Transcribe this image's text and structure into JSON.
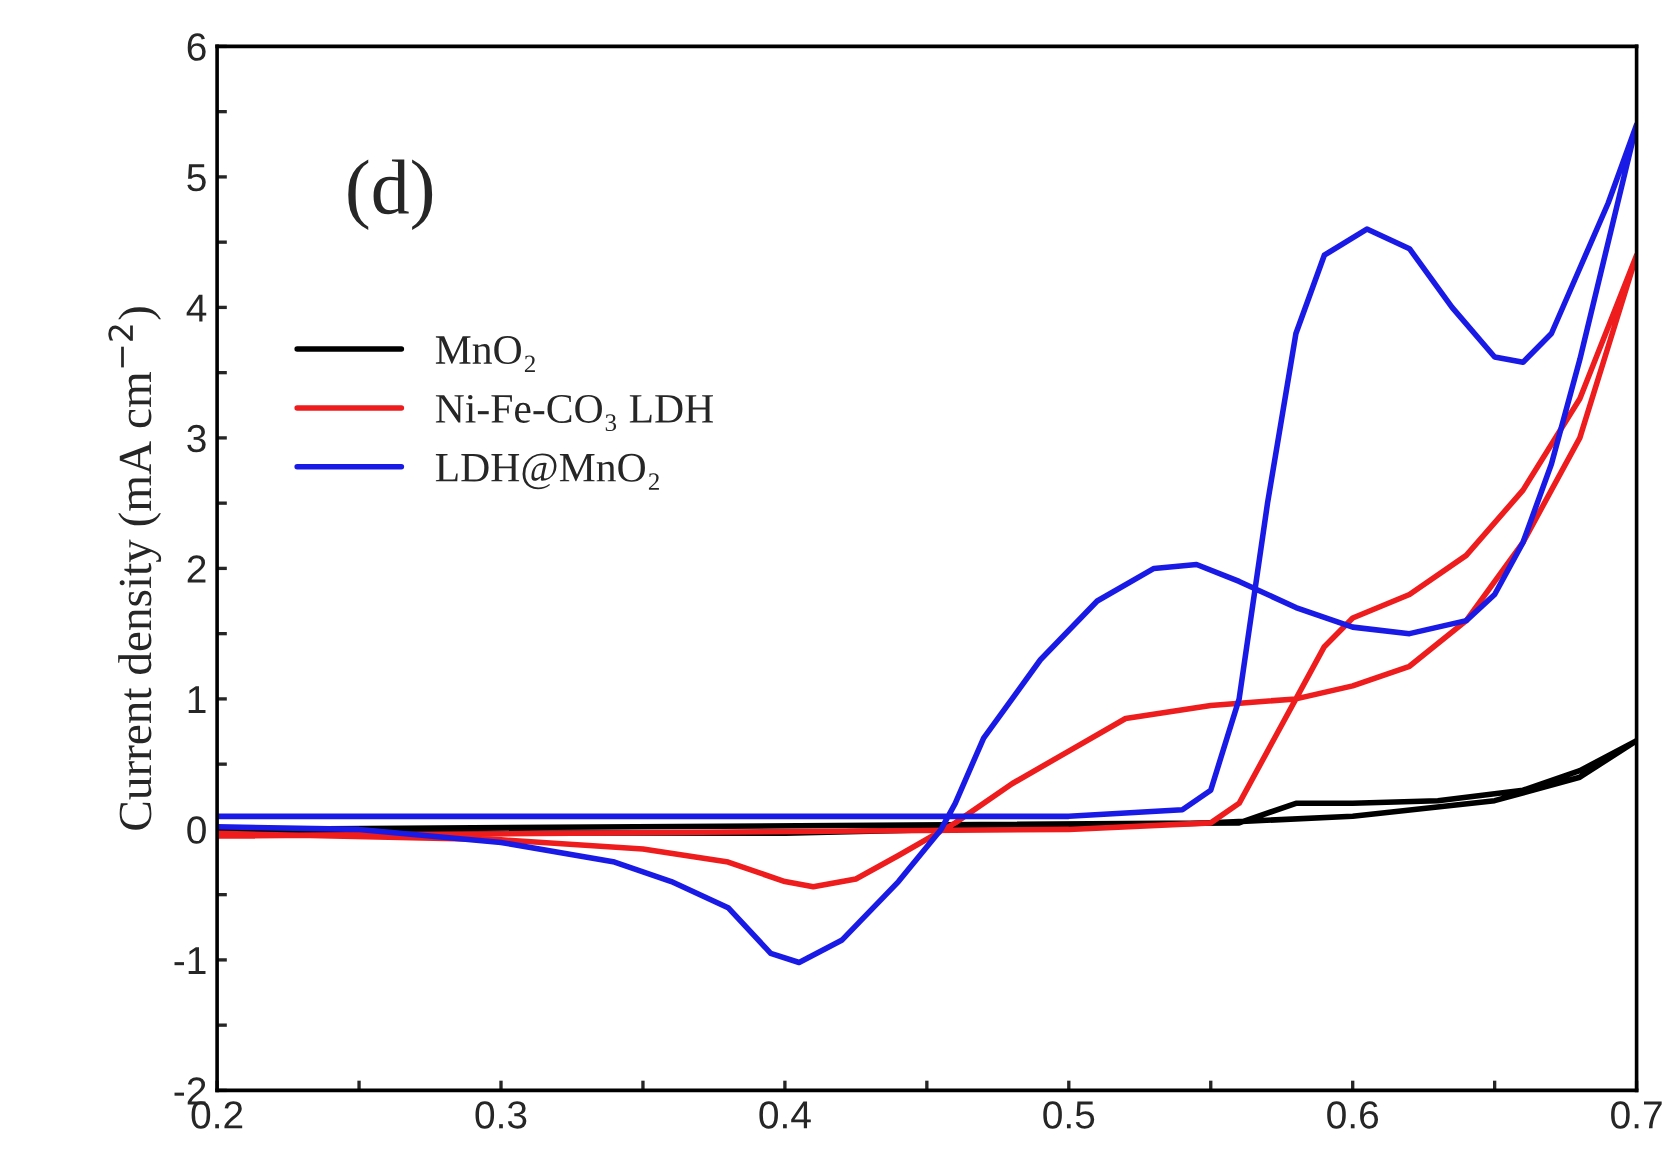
{
  "chart_data": {
    "type": "line",
    "ylabel": "Current density (mA cm$^{−2}$)",
    "annotations": [
      "(d)"
    ],
    "xlim": [
      0.2,
      0.7
    ],
    "ylim": [
      -2,
      6
    ],
    "xticks": [
      0.2,
      {
        "value": 0.25,
        "label": null
      },
      0.3,
      {
        "value": 0.35,
        "label": null
      },
      0.4,
      {
        "value": 0.45,
        "label": null
      },
      0.5,
      {
        "value": 0.55,
        "label": null
      },
      0.6,
      {
        "value": 0.65,
        "label": null
      },
      0.7
    ],
    "yticks": [
      -2,
      {
        "value": -1.5,
        "label": null
      },
      -1,
      {
        "value": -0.5,
        "label": null
      },
      0,
      {
        "value": 0.5,
        "label": null
      },
      1,
      {
        "value": 1.5,
        "label": null
      },
      2,
      {
        "value": 2.5,
        "label": null
      },
      3,
      {
        "value": 3.5,
        "label": null
      },
      4,
      {
        "value": 4.5,
        "label": null
      },
      5,
      {
        "value": 5.5,
        "label": null
      },
      6
    ],
    "legend": "top left",
    "grid": false,
    "marker": "none",
    "line_style": "solid",
    "series": [
      {
        "name": "MnO₂",
        "color": "#000000",
        "x": [
          0.2,
          0.56,
          0.58,
          0.6,
          0.63,
          0.66,
          0.68,
          0.7,
          0.68,
          0.65,
          0.6,
          0.55,
          0.4,
          0.2
        ],
        "values": [
          0.0,
          0.05,
          0.2,
          0.2,
          0.22,
          0.3,
          0.45,
          0.68,
          0.4,
          0.22,
          0.1,
          0.05,
          -0.03,
          -0.02
        ]
      },
      {
        "name": "Ni-Fe-CO₃ LDH",
        "color": "#ee1c1c",
        "x": [
          0.2,
          0.5,
          0.55,
          0.56,
          0.57,
          0.58,
          0.59,
          0.6,
          0.62,
          0.64,
          0.66,
          0.68,
          0.7,
          0.68,
          0.66,
          0.64,
          0.62,
          0.6,
          0.58,
          0.55,
          0.52,
          0.5,
          0.48,
          0.46,
          0.44,
          0.425,
          0.41,
          0.4,
          0.38,
          0.35,
          0.3,
          0.2
        ],
        "values": [
          -0.05,
          0.0,
          0.05,
          0.2,
          0.6,
          1.0,
          1.4,
          1.62,
          1.8,
          2.1,
          2.6,
          3.3,
          4.4,
          3.0,
          2.2,
          1.6,
          1.25,
          1.1,
          1.0,
          0.95,
          0.85,
          0.6,
          0.35,
          0.05,
          -0.2,
          -0.38,
          -0.44,
          -0.4,
          -0.25,
          -0.15,
          -0.08,
          -0.03
        ]
      },
      {
        "name": "LDH@MnO₂",
        "color": "#1a1ae6",
        "x": [
          0.2,
          0.5,
          0.54,
          0.55,
          0.56,
          0.57,
          0.58,
          0.59,
          0.605,
          0.62,
          0.635,
          0.65,
          0.66,
          0.67,
          0.68,
          0.69,
          0.7,
          0.69,
          0.68,
          0.67,
          0.66,
          0.65,
          0.64,
          0.62,
          0.6,
          0.58,
          0.56,
          0.545,
          0.53,
          0.51,
          0.49,
          0.47,
          0.46,
          0.455,
          0.44,
          0.42,
          0.405,
          0.395,
          0.38,
          0.36,
          0.34,
          0.3,
          0.25,
          0.2
        ],
        "values": [
          0.1,
          0.1,
          0.15,
          0.3,
          1.0,
          2.5,
          3.8,
          4.4,
          4.6,
          4.45,
          4.0,
          3.62,
          3.58,
          3.8,
          4.3,
          4.8,
          5.4,
          4.5,
          3.6,
          2.8,
          2.2,
          1.8,
          1.6,
          1.5,
          1.55,
          1.7,
          1.9,
          2.03,
          2.0,
          1.75,
          1.3,
          0.7,
          0.2,
          0.0,
          -0.4,
          -0.85,
          -1.02,
          -0.95,
          -0.6,
          -0.4,
          -0.25,
          -0.1,
          0.0,
          0.02
        ]
      }
    ]
  }
}
